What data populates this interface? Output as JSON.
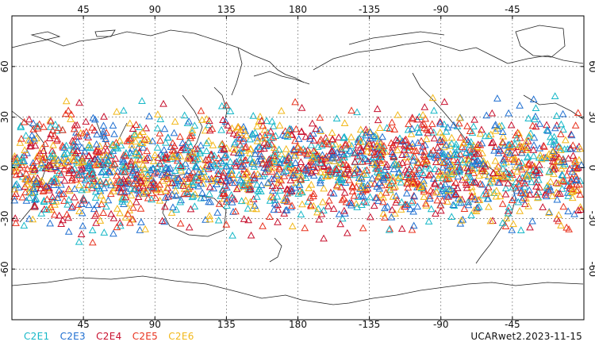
{
  "map": {
    "projection": "cylindrical-equidistant",
    "lon_center": 180,
    "lat_range": [
      -90,
      90
    ],
    "lon_ticks": [
      "45",
      "90",
      "135",
      "180",
      "-135",
      "-90",
      "-45"
    ],
    "lat_ticks": [
      "60",
      "30",
      "0",
      "-30",
      "-60"
    ],
    "grid": true,
    "observation_lat_range": [
      -45,
      45
    ],
    "marker_shape": "triangle-outline"
  },
  "legend": [
    {
      "label": "C2E1",
      "color": "#17b8c8"
    },
    {
      "label": "C2E3",
      "color": "#1f6fd1"
    },
    {
      "label": "C2E4",
      "color": "#c8102e"
    },
    {
      "label": "C2E5",
      "color": "#e8321e"
    },
    {
      "label": "C2E6",
      "color": "#f2b81a"
    }
  ],
  "footer": {
    "dataset_id": "UCARwet2.2023-11-15"
  }
}
